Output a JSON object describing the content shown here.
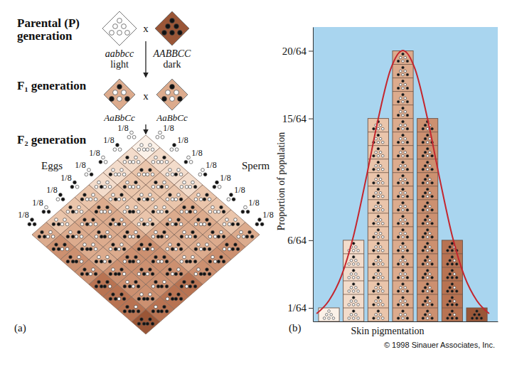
{
  "diagram": {
    "label": "(a)",
    "parental": {
      "title": [
        "Parental (P)",
        "generation"
      ],
      "cross": "x",
      "left": {
        "genotype": "aabbcc",
        "phenotype": "light"
      },
      "right": {
        "genotype": "AABBCC",
        "phenotype": "dark"
      }
    },
    "f1": {
      "title": "F₁ generation",
      "left": "AaBbCc",
      "cross": "x",
      "right": "AaBbCc"
    },
    "f2": {
      "title": "F₂ generation",
      "eggs": "Eggs",
      "sperm": "Sperm",
      "egg_fractions": [
        "1/8",
        "1/8",
        "1/8",
        "1/8",
        "1/8",
        "1/8",
        "1/8",
        "1/8"
      ],
      "sperm_fractions": [
        "1/8",
        "1/8",
        "1/8",
        "1/8",
        "1/8",
        "1/8",
        "1/8",
        "1/8"
      ]
    }
  },
  "chart_data": {
    "type": "bar",
    "ylabel": "Proportion of population",
    "xlabel": "Skin pigmentation",
    "annotations": [
      "(b)",
      "© 1998 Sinauer Associates, Inc."
    ],
    "xlim": [
      -0.65,
      6.85
    ],
    "ylim": [
      0,
      0.34
    ],
    "yticks": [
      {
        "value": 0.015625,
        "label": "1/64"
      },
      {
        "value": 0.09375,
        "label": "6/64"
      },
      {
        "value": 0.234375,
        "label": "15/64"
      },
      {
        "value": 0.3125,
        "label": "20/64"
      }
    ],
    "tick_labels": "y",
    "grid": false,
    "series": [
      {
        "type": "bar",
        "x": [
          0,
          1,
          2,
          3,
          4,
          5,
          6
        ],
        "values": [
          0.015625,
          0.09375,
          0.234375,
          0.3125,
          0.234375,
          0.09375,
          0.015625
        ],
        "colors": [
          "#fbf1e8",
          "#f3dccb",
          "#eac5ab",
          "#dcab8d",
          "#cc9070",
          "#b87352",
          "#9a5637"
        ]
      },
      {
        "type": "line",
        "color": "#c4262e",
        "x": [
          -0.5,
          0,
          0.5,
          1,
          1.5,
          2,
          2.5,
          3,
          3.5,
          4,
          4.5,
          5,
          5.5,
          6,
          6.5
        ],
        "values": [
          0.009,
          0.024,
          0.052,
          0.099,
          0.164,
          0.234,
          0.291,
          0.313,
          0.291,
          0.234,
          0.164,
          0.099,
          0.052,
          0.024,
          0.009
        ]
      }
    ]
  }
}
